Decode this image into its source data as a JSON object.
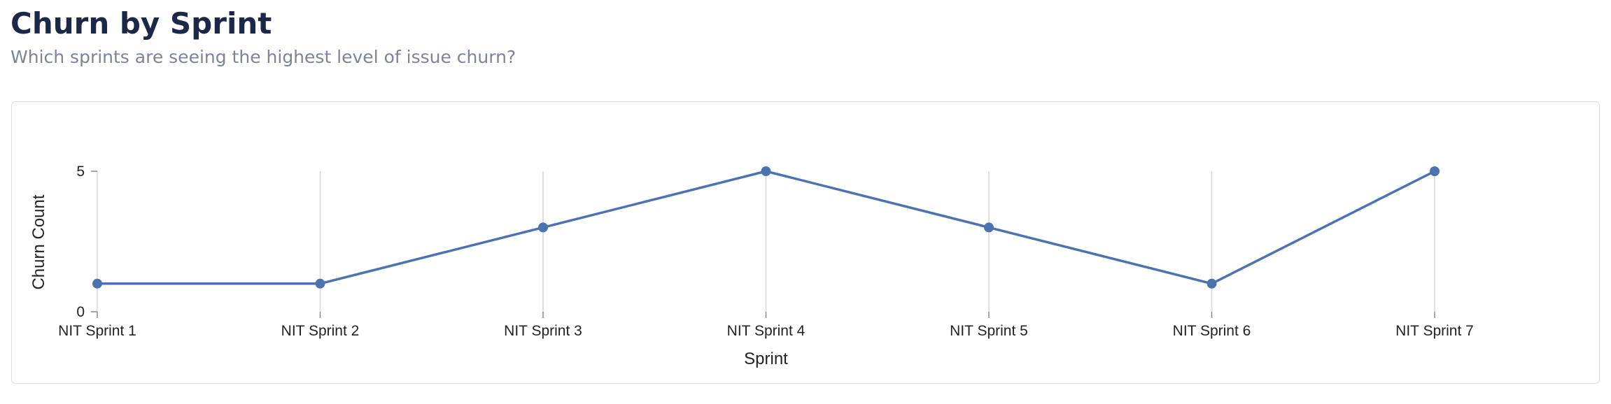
{
  "header": {
    "title": "Churn by Sprint",
    "subtitle": "Which sprints are seeing the highest level of issue churn?"
  },
  "colors": {
    "line": "#4c72b0",
    "gridline": "#d6d6d6",
    "axis": "#888888",
    "title": "#1d2747",
    "subtitle": "#7c8495"
  },
  "chart_data": {
    "type": "line",
    "title": "",
    "xlabel": "Sprint",
    "ylabel": "Churn Count",
    "categories": [
      "NIT Sprint 1",
      "NIT Sprint 2",
      "NIT Sprint 3",
      "NIT Sprint 4",
      "NIT Sprint 5",
      "NIT Sprint 6",
      "NIT Sprint 7"
    ],
    "series": [
      {
        "values": [
          1,
          1,
          3,
          5,
          3,
          1,
          5
        ]
      }
    ],
    "ylim": [
      0,
      5
    ],
    "yticks": [
      0,
      5
    ],
    "grid": "vertical",
    "markers": true,
    "legend": "none"
  }
}
